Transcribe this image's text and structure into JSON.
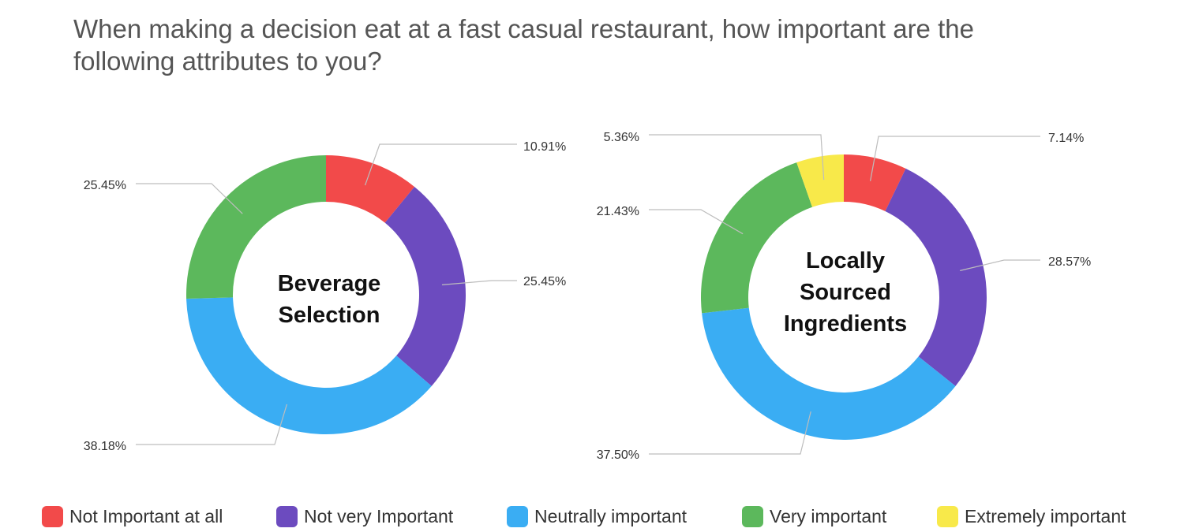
{
  "title_lines": [
    "When making a decision eat at a fast casual restaurant, how important are the",
    "following attributes to you?"
  ],
  "chart_data": [
    {
      "type": "pie",
      "variant": "donut",
      "center_label": [
        "Beverage",
        "Selection"
      ],
      "slices": [
        {
          "category": "Not Important at all",
          "value": 10.91,
          "label": "10.91%"
        },
        {
          "category": "Not very Important",
          "value": 25.45,
          "label": "25.45%"
        },
        {
          "category": "Neutrally important",
          "value": 38.18,
          "label": "38.18%"
        },
        {
          "category": "Very important",
          "value": 25.45,
          "label": "25.45%"
        }
      ]
    },
    {
      "type": "pie",
      "variant": "donut",
      "center_label": [
        "Locally",
        "Sourced",
        "Ingredients"
      ],
      "slices": [
        {
          "category": "Not Important at all",
          "value": 7.14,
          "label": "7.14%"
        },
        {
          "category": "Not very Important",
          "value": 28.57,
          "label": "28.57%"
        },
        {
          "category": "Neutrally important",
          "value": 37.5,
          "label": "37.50%"
        },
        {
          "category": "Very important",
          "value": 21.43,
          "label": "21.43%"
        },
        {
          "category": "Extremely important",
          "value": 5.36,
          "label": "5.36%"
        }
      ]
    }
  ],
  "legend": [
    {
      "label": "Not Important at all",
      "color": "#f24a4a"
    },
    {
      "label": "Not very Important",
      "color": "#6c4bbf"
    },
    {
      "label": "Neutrally important",
      "color": "#3aadf3"
    },
    {
      "label": "Very important",
      "color": "#5cb85c"
    },
    {
      "label": "Extremely important",
      "color": "#f8e94a"
    }
  ]
}
